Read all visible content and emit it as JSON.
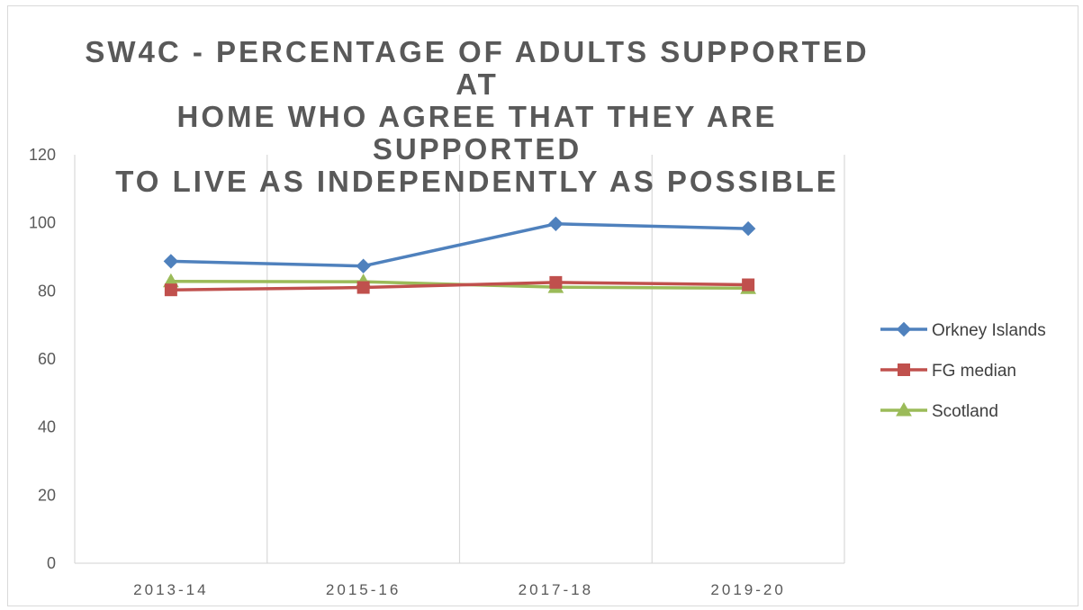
{
  "chart_data": {
    "type": "line",
    "title": "SW4C - PERCENTAGE OF ADULTS SUPPORTED AT HOME WHO AGREE THAT THEY ARE SUPPORTED TO LIVE AS INDEPENDENTLY AS POSSIBLE",
    "title_lines": [
      "SW4C - PERCENTAGE OF ADULTS SUPPORTED AT",
      "HOME WHO AGREE THAT THEY ARE SUPPORTED",
      "TO LIVE AS INDEPENDENTLY AS POSSIBLE"
    ],
    "categories": [
      "2013-14",
      "2015-16",
      "2017-18",
      "2019-20"
    ],
    "ylim": [
      0,
      120
    ],
    "yticks": [
      0,
      20,
      40,
      60,
      80,
      100,
      120
    ],
    "grid": "vertical",
    "legend_position": "right",
    "series": [
      {
        "name": "Orkney Islands",
        "values": [
          88.7,
          87.3,
          99.7,
          98.3
        ],
        "color": "#4f81bd",
        "marker": "diamond"
      },
      {
        "name": "FG median",
        "values": [
          80.3,
          81.0,
          82.5,
          81.8
        ],
        "color": "#c0504d",
        "marker": "square"
      },
      {
        "name": "Scotland",
        "values": [
          82.8,
          82.7,
          81.1,
          80.8
        ],
        "color": "#9bbb59",
        "marker": "triangle"
      }
    ]
  }
}
